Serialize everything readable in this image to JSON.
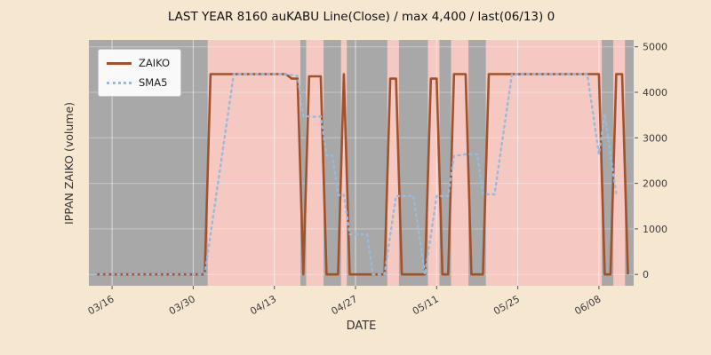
{
  "chart_data": {
    "type": "line",
    "title": "LAST YEAR 8160 auKABU Line(Close) / max 4,400 / last(06/13) 0",
    "xlabel": "DATE",
    "ylabel": "IPPAN ZAIKO (volume)",
    "x_ticks": [
      "03/16",
      "03/30",
      "04/13",
      "04/27",
      "05/11",
      "05/25",
      "06/08"
    ],
    "y_ticks": [
      0,
      1000,
      2000,
      3000,
      4000,
      5000
    ],
    "ylim": [
      -250,
      5150
    ],
    "legend_position": "upper-left",
    "grid": "white-vertical-at-xticks",
    "colors": {
      "figure_bg": "#f6e7d1",
      "plot_bg": "#f5c8c2",
      "zero_band": "#a8a8a8",
      "grid": "#ffffff",
      "zaiko": "#a0522d",
      "sma5": "#97badd",
      "tick_text": "#3c3c3c"
    },
    "dates": [
      "03/13",
      "03/14",
      "03/15",
      "03/16",
      "03/17",
      "03/18",
      "03/19",
      "03/20",
      "03/21",
      "03/22",
      "03/23",
      "03/24",
      "03/25",
      "03/26",
      "03/27",
      "03/28",
      "03/29",
      "03/30",
      "03/31",
      "04/01",
      "04/02",
      "04/03",
      "04/04",
      "04/05",
      "04/06",
      "04/07",
      "04/08",
      "04/09",
      "04/10",
      "04/11",
      "04/12",
      "04/13",
      "04/14",
      "04/15",
      "04/16",
      "04/17",
      "04/18",
      "04/19",
      "04/20",
      "04/21",
      "04/22",
      "04/23",
      "04/24",
      "04/25",
      "04/26",
      "04/27",
      "04/28",
      "04/29",
      "04/30",
      "05/01",
      "05/02",
      "05/03",
      "05/04",
      "05/05",
      "05/06",
      "05/07",
      "05/08",
      "05/09",
      "05/10",
      "05/11",
      "05/12",
      "05/13",
      "05/14",
      "05/15",
      "05/16",
      "05/17",
      "05/18",
      "05/19",
      "05/20",
      "05/21",
      "05/22",
      "05/23",
      "05/24",
      "05/25",
      "05/26",
      "05/27",
      "05/28",
      "05/29",
      "05/30",
      "05/31",
      "06/01",
      "06/02",
      "06/03",
      "06/04",
      "06/05",
      "06/06",
      "06/07",
      "06/08",
      "06/09",
      "06/10",
      "06/11",
      "06/12",
      "06/13"
    ],
    "series": [
      {
        "name": "ZAIKO",
        "style": "solid",
        "color": "#a0522d",
        "values": [
          0,
          0,
          0,
          0,
          0,
          0,
          0,
          0,
          0,
          0,
          0,
          0,
          0,
          0,
          0,
          0,
          0,
          0,
          0,
          0,
          4400,
          4400,
          4400,
          4400,
          4400,
          4400,
          4400,
          4400,
          4400,
          4400,
          4400,
          4400,
          4400,
          4400,
          4300,
          4300,
          0,
          4350,
          4350,
          4350,
          0,
          0,
          0,
          4400,
          0,
          0,
          0,
          0,
          0,
          0,
          0,
          4300,
          4300,
          0,
          0,
          0,
          0,
          0,
          4300,
          4300,
          0,
          0,
          4400,
          4400,
          4400,
          0,
          0,
          0,
          4400,
          4400,
          4400,
          4400,
          4400,
          4400,
          4400,
          4400,
          4400,
          4400,
          4400,
          4400,
          4400,
          4400,
          4400,
          4400,
          4400,
          4400,
          4400,
          4400,
          0,
          0,
          4400,
          4400,
          0
        ]
      },
      {
        "name": "SMA5",
        "style": "dotted",
        "color": "#97badd",
        "values": [
          0,
          0,
          0,
          0,
          0,
          0,
          0,
          0,
          0,
          0,
          0,
          0,
          0,
          0,
          0,
          0,
          0,
          0,
          0,
          0,
          880,
          1760,
          2640,
          3520,
          4400,
          4400,
          4400,
          4400,
          4400,
          4400,
          4400,
          4400,
          4400,
          4400,
          4380,
          4360,
          3480,
          3470,
          3460,
          3470,
          2610,
          2610,
          1740,
          1750,
          880,
          880,
          880,
          880,
          0,
          0,
          0,
          860,
          1720,
          1720,
          1720,
          1720,
          860,
          0,
          860,
          1720,
          1720,
          1720,
          2600,
          2620,
          2640,
          2640,
          2640,
          1760,
          1760,
          1760,
          2640,
          3520,
          4400,
          4400,
          4400,
          4400,
          4400,
          4400,
          4400,
          4400,
          4400,
          4400,
          4400,
          4400,
          4400,
          4400,
          3520,
          2640,
          3520,
          2640,
          1760
        ]
      }
    ]
  }
}
